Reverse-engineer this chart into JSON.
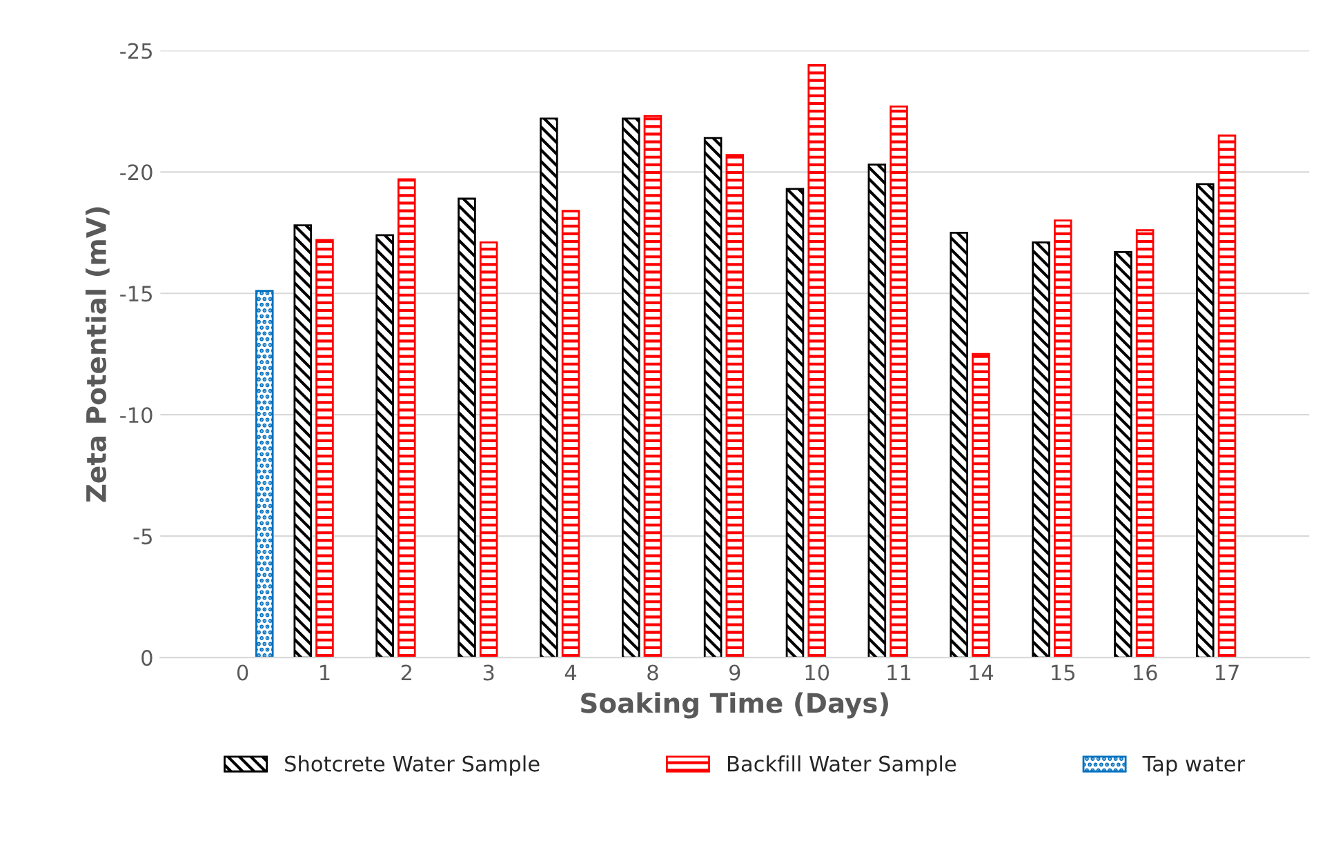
{
  "chart_data": {
    "type": "bar",
    "xlabel": "Soaking Time (Days)",
    "ylabel": "Zeta Potential (mV)",
    "categories": [
      "0",
      "1",
      "2",
      "3",
      "4",
      "8",
      "9",
      "10",
      "11",
      "14",
      "15",
      "16",
      "17"
    ],
    "series": [
      {
        "name": "Shotcrete Water Sample",
        "color": "#000000",
        "values": [
          null,
          -17.8,
          -17.4,
          -18.9,
          -22.2,
          -22.2,
          -21.4,
          -19.3,
          -20.3,
          -17.5,
          -17.1,
          -16.7,
          -19.5
        ]
      },
      {
        "name": "Backfill Water Sample",
        "color": "#ff0000",
        "values": [
          null,
          -17.2,
          -19.7,
          -17.1,
          -18.4,
          -22.3,
          -20.7,
          -24.4,
          -22.7,
          -12.5,
          -18.0,
          -17.6,
          -21.5
        ]
      },
      {
        "name": "Tap water",
        "color": "#0070c0",
        "values": [
          -15.1,
          null,
          null,
          null,
          null,
          null,
          null,
          null,
          null,
          null,
          null,
          null,
          null
        ]
      }
    ],
    "ylim": [
      0,
      -25
    ],
    "yticks": [
      0,
      -5,
      -10,
      -15,
      -20,
      -25
    ],
    "grid": "y",
    "legend": "bottom"
  }
}
